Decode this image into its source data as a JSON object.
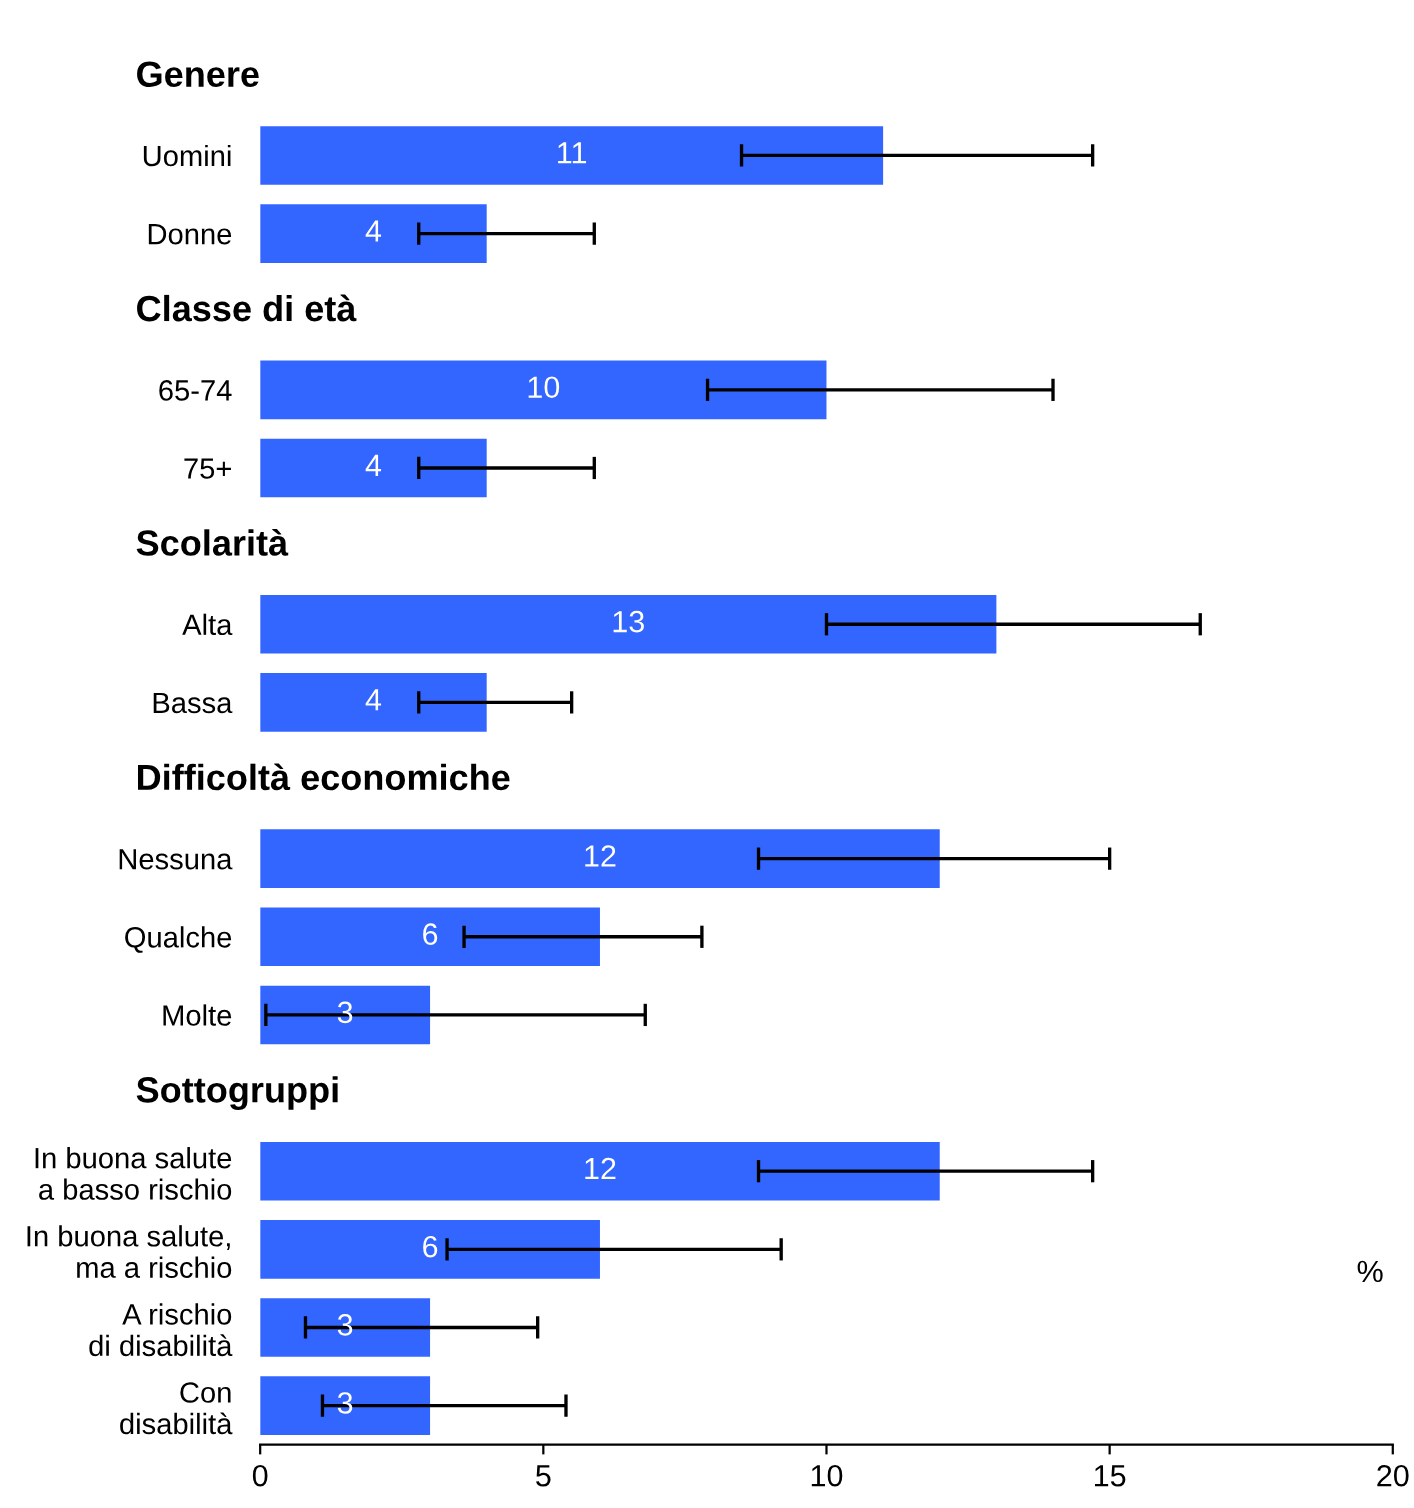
{
  "chart_data": {
    "type": "bar",
    "orientation": "horizontal",
    "xlabel": "%",
    "categories": [
      "Genere",
      "Uomini",
      "Donne",
      "Classe di età",
      "65-74",
      "75+",
      "Scolarità",
      "Alta",
      "Bassa",
      "Difficoltà economiche",
      "Nessuna",
      "Qualche",
      "Molte",
      "Sottogruppi",
      "In buona salute\na basso rischio",
      "In buona salute,\nma a rischio",
      "A rischio\ndi disabilità",
      "Con\ndisabilità"
    ],
    "values": [
      null,
      11,
      4,
      null,
      10,
      4,
      null,
      13,
      4,
      null,
      12,
      6,
      3,
      null,
      12,
      6,
      3,
      3
    ],
    "errors": [
      null,
      [
        8.5,
        14.7
      ],
      [
        2.8,
        5.9
      ],
      null,
      [
        7.9,
        14.0
      ],
      [
        2.8,
        5.9
      ],
      null,
      [
        10.0,
        16.6
      ],
      [
        2.8,
        5.5
      ],
      null,
      [
        8.8,
        15.0
      ],
      [
        3.6,
        7.8
      ],
      [
        0.1,
        6.8
      ],
      null,
      [
        8.8,
        14.7
      ],
      [
        3.3,
        9.2
      ],
      [
        0.8,
        4.9
      ],
      [
        1.1,
        5.4
      ]
    ],
    "color": "#3366ff",
    "data_labels": true,
    "xlim": [
      0,
      20
    ],
    "xticks": [
      0,
      5,
      10,
      15,
      20
    ],
    "grid": false,
    "legend": false
  }
}
